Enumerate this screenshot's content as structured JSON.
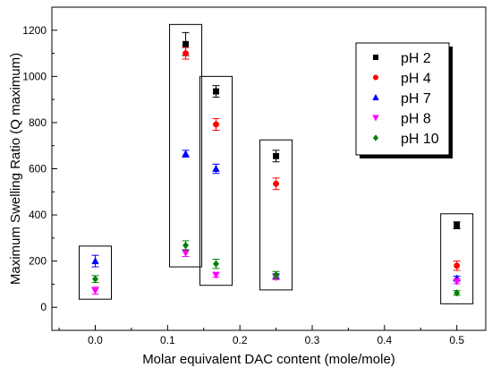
{
  "chart_data": {
    "type": "scatter",
    "title": "",
    "xlabel": "Molar equivalent DAC content (mole/mole)",
    "ylabel": "Maximum Swelling Ratio (Q maximum)",
    "xlim": [
      -0.06,
      0.54
    ],
    "ylim": [
      -100,
      1300
    ],
    "xticks": [
      0.0,
      0.1,
      0.2,
      0.3,
      0.4,
      0.5
    ],
    "xtick_labels": [
      "0.0",
      "0.1",
      "0.2",
      "0.3",
      "0.4",
      "0.5"
    ],
    "yticks": [
      0,
      200,
      400,
      600,
      800,
      1000,
      1200
    ],
    "ytick_labels": [
      "0",
      "200",
      "400",
      "600",
      "800",
      "1000",
      "1200"
    ],
    "x": [
      0.0,
      0.125,
      0.167,
      0.25,
      0.5
    ],
    "series": [
      {
        "name": "pH 2",
        "color": "#000000",
        "marker": "square",
        "values": [
          null,
          1140,
          935,
          655,
          355
        ],
        "errors": [
          null,
          50,
          25,
          25,
          15
        ]
      },
      {
        "name": "pH 4",
        "color": "#ff0000",
        "marker": "circle",
        "values": [
          null,
          1100,
          792,
          535,
          180
        ],
        "errors": [
          null,
          25,
          25,
          25,
          20
        ]
      },
      {
        "name": "pH 7",
        "color": "#0000ff",
        "marker": "triangle-up",
        "values": [
          200,
          665,
          600,
          135,
          125
        ],
        "errors": [
          25,
          15,
          20,
          10,
          10
        ]
      },
      {
        "name": "pH 8",
        "color": "#ff00ff",
        "marker": "triangle-down",
        "values": [
          72,
          235,
          140,
          130,
          112
        ],
        "errors": [
          15,
          15,
          10,
          10,
          10
        ]
      },
      {
        "name": "pH 10",
        "color": "#008000",
        "marker": "diamond",
        "values": [
          122,
          268,
          188,
          140,
          62
        ],
        "errors": [
          15,
          20,
          20,
          15,
          10
        ]
      }
    ],
    "group_boxes": [
      {
        "x": 0.0,
        "ymin": 35,
        "ymax": 265
      },
      {
        "x": 0.125,
        "ymin": 175,
        "ymax": 1225
      },
      {
        "x": 0.167,
        "ymin": 95,
        "ymax": 1000
      },
      {
        "x": 0.25,
        "ymin": 75,
        "ymax": 725
      },
      {
        "x": 0.5,
        "ymin": 15,
        "ymax": 405
      }
    ],
    "legend": {
      "position": "top-right"
    },
    "grid": false
  }
}
